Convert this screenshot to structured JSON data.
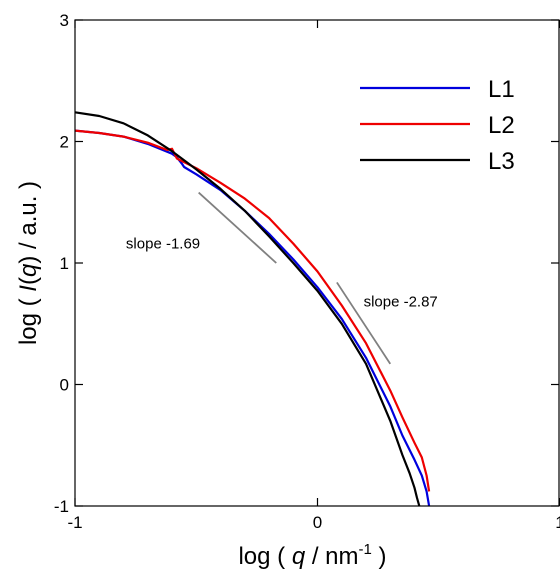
{
  "chart_data": {
    "type": "line",
    "title": "",
    "xlabel": {
      "prefix": "log ( ",
      "var": "q",
      "mid": " / nm",
      "sup": "-1",
      "suffix": " )"
    },
    "ylabel": {
      "prefix": "log ( ",
      "var": "I",
      "open": "(",
      "var2": "q",
      "close": ")",
      "suffix": " / a.u. )"
    },
    "xlim": [
      -1,
      1
    ],
    "ylim": [
      -1,
      3
    ],
    "xticks": [
      -1,
      0,
      1
    ],
    "yticks": [
      -1,
      0,
      1,
      2,
      3
    ],
    "xtick_labels": [
      "-1",
      "0",
      "1"
    ],
    "ytick_labels": [
      "-1",
      "0",
      "1",
      "2",
      "3"
    ],
    "grid": false,
    "legend_position": "top-right",
    "series": [
      {
        "name": "L1",
        "color": "#0000dd",
        "x": [
          -1.0,
          -0.9,
          -0.8,
          -0.7,
          -0.6,
          -0.58,
          -0.56,
          -0.55,
          -0.5,
          -0.4,
          -0.3,
          -0.2,
          -0.1,
          0.0,
          0.1,
          0.2,
          0.3,
          0.35,
          0.4,
          0.43,
          0.45,
          0.46
        ],
        "y": [
          2.09,
          2.07,
          2.04,
          1.98,
          1.9,
          1.87,
          1.82,
          1.79,
          1.73,
          1.6,
          1.43,
          1.24,
          1.03,
          0.8,
          0.54,
          0.22,
          -0.18,
          -0.42,
          -0.62,
          -0.75,
          -0.88,
          -1.0
        ]
      },
      {
        "name": "L2",
        "color": "#ee0000",
        "x": [
          -1.0,
          -0.9,
          -0.8,
          -0.7,
          -0.62,
          -0.6,
          -0.58,
          -0.55,
          -0.5,
          -0.4,
          -0.3,
          -0.2,
          -0.1,
          0.0,
          0.1,
          0.2,
          0.3,
          0.35,
          0.4,
          0.43,
          0.45,
          0.46
        ],
        "y": [
          2.09,
          2.07,
          2.04,
          1.99,
          1.93,
          1.94,
          1.86,
          1.83,
          1.78,
          1.66,
          1.53,
          1.37,
          1.16,
          0.93,
          0.65,
          0.34,
          -0.05,
          -0.27,
          -0.48,
          -0.6,
          -0.75,
          -0.88
        ]
      },
      {
        "name": "L3",
        "color": "#000000",
        "x": [
          -1.0,
          -0.9,
          -0.8,
          -0.7,
          -0.6,
          -0.5,
          -0.4,
          -0.3,
          -0.2,
          -0.1,
          0.0,
          0.1,
          0.2,
          0.3,
          0.35,
          0.38,
          0.4,
          0.41,
          0.42
        ],
        "y": [
          2.24,
          2.21,
          2.15,
          2.05,
          1.92,
          1.77,
          1.61,
          1.43,
          1.22,
          1.0,
          0.77,
          0.5,
          0.17,
          -0.3,
          -0.58,
          -0.73,
          -0.85,
          -0.93,
          -1.0
        ]
      }
    ],
    "guides": [
      {
        "x": [
          -0.49,
          -0.17
        ],
        "y": [
          1.58,
          1.0
        ],
        "color": "#808080"
      },
      {
        "x": [
          0.08,
          0.3
        ],
        "y": [
          0.84,
          0.17
        ],
        "color": "#808080"
      }
    ],
    "annotations": [
      {
        "text": "slope -1.69",
        "x": -0.79,
        "y": 1.12
      },
      {
        "text": "slope -2.87",
        "x": 0.19,
        "y": 0.64
      }
    ]
  }
}
